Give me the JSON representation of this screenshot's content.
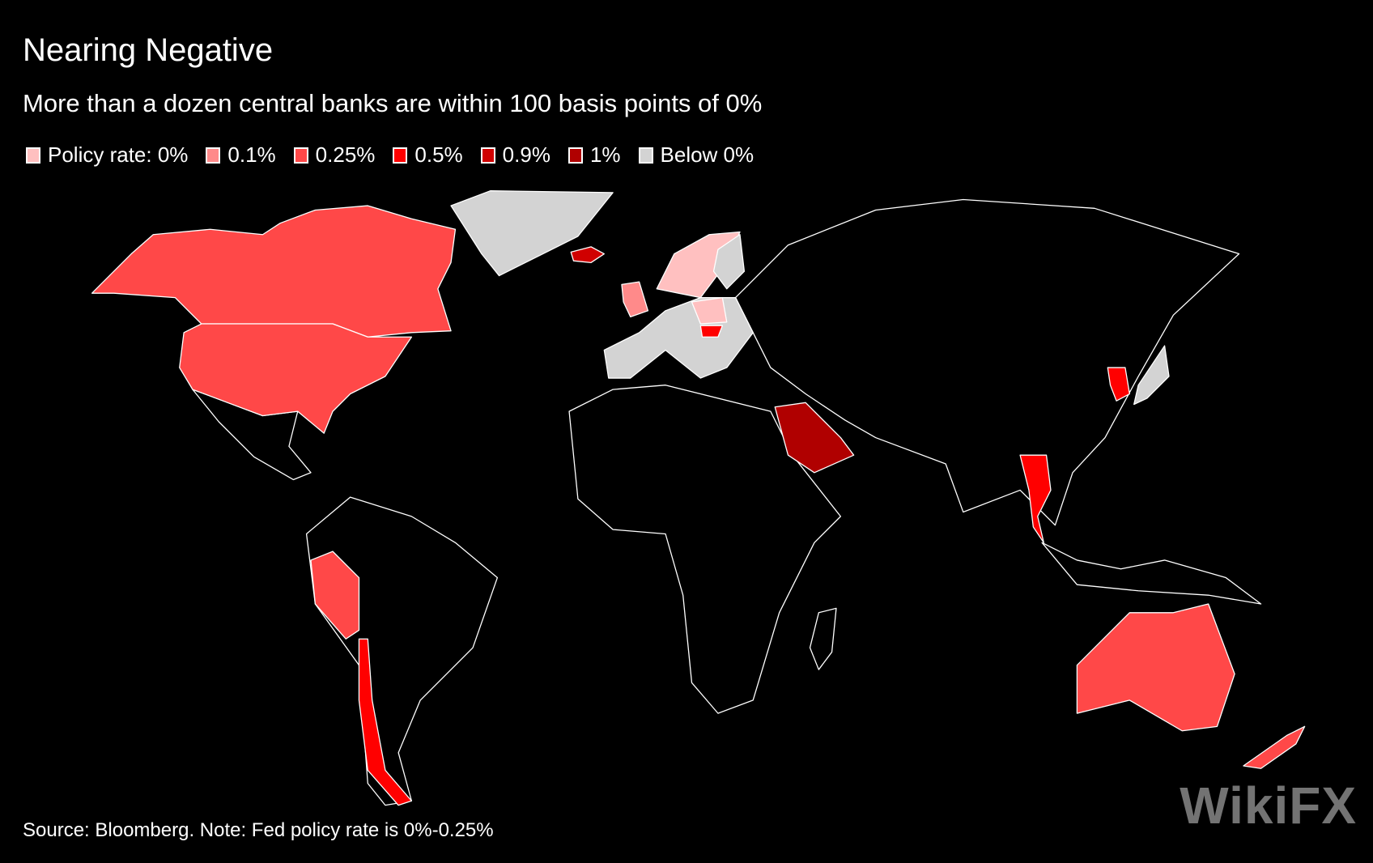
{
  "chart_data": {
    "type": "choropleth-map",
    "title": "Nearing Negative",
    "subtitle": "More than a dozen central banks are within 100 basis points of 0%",
    "legend": [
      {
        "label": "Policy rate: 0%",
        "color": "#ffc0c0"
      },
      {
        "label": "0.1%",
        "color": "#ff8a8a"
      },
      {
        "label": "0.25%",
        "color": "#ff4848"
      },
      {
        "label": "0.5%",
        "color": "#ff0000"
      },
      {
        "label": "0.9%",
        "color": "#d00000"
      },
      {
        "label": "1%",
        "color": "#b00000"
      },
      {
        "label": "Below 0%",
        "color": "#d3d3d3"
      }
    ],
    "legend_placement": "top-left",
    "background": "#000000",
    "source": "Source: Bloomberg. Note: Fed policy rate is 0%-0.25%"
  },
  "watermark": "WikiFX"
}
